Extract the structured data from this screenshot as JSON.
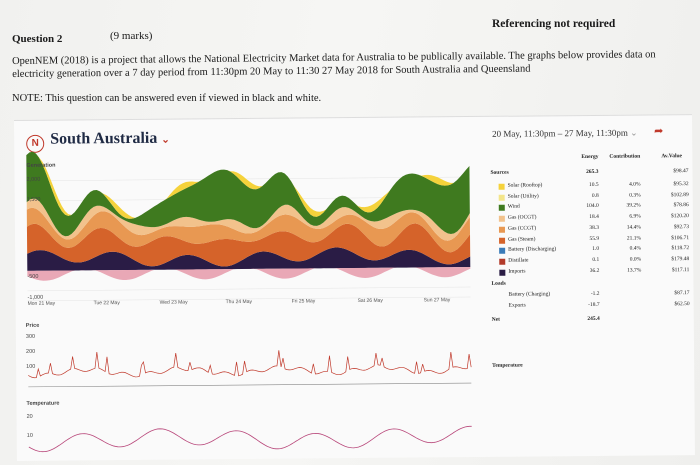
{
  "header": {
    "question": "Question 2",
    "marks": "(9 marks)",
    "reference_note": "Referencing not required"
  },
  "body": {
    "paragraph": "OpenNEM (2018) is a project that allows the National Electricity Market data for Australia to be publically available.  The graphs below provides data on electricity generation over a 7 day period from 11:30pm 20 May to 11:30 27 May 2018 for South Australia and Queensland",
    "note": "NOTE: This question can be answered even if viewed in black and white."
  },
  "panel": {
    "region": "South Australia",
    "range": "20 May, 11:30pm – 27 May, 11:30pm",
    "generation_label": "Generation",
    "price_label": "Price",
    "temperature_label": "Temperature",
    "days": [
      "Mon 21 May",
      "Tue 22 May",
      "Wed 23 May",
      "Thu 24 May",
      "Fri 25 May",
      "Sat 26 May",
      "Sun 27 May"
    ],
    "gen_ticks": [
      "2,000",
      "1,500",
      "-500",
      "-1,000"
    ],
    "price_ticks": [
      "300",
      "200",
      "100"
    ],
    "temp_ticks": [
      "20",
      "10"
    ]
  },
  "table": {
    "headers": {
      "energy": "Energy",
      "contribution": "Contribution",
      "value": "Av.Value"
    },
    "sources_label": "Sources",
    "sources_total": "265.3",
    "sources_value": "$98.47",
    "rows": [
      {
        "label": "Solar (Rooftop)",
        "color": "#f5d23b",
        "energy": "10.5",
        "contrib": "4.0%",
        "value": "$95.32"
      },
      {
        "label": "Solar (Utility)",
        "color": "#f3e58a",
        "energy": "0.8",
        "contrib": "0.3%",
        "value": "$102.89"
      },
      {
        "label": "Wind",
        "color": "#3f7a1f",
        "energy": "104.0",
        "contrib": "39.2%",
        "value": "$78.86"
      },
      {
        "label": "Gas (OCGT)",
        "color": "#f2c28c",
        "energy": "18.4",
        "contrib": "6.9%",
        "value": "$120.20"
      },
      {
        "label": "Gas (CCGT)",
        "color": "#e89852",
        "energy": "38.3",
        "contrib": "14.4%",
        "value": "$92.73"
      },
      {
        "label": "Gas (Steam)",
        "color": "#d5632a",
        "energy": "55.9",
        "contrib": "21.1%",
        "value": "$106.71"
      },
      {
        "label": "Battery (Discharging)",
        "color": "#3a7bb8",
        "energy": "1.0",
        "contrib": "0.4%",
        "value": "$118.72"
      },
      {
        "label": "Distillate",
        "color": "#b23a2a",
        "energy": "0.1",
        "contrib": "0.0%",
        "value": "$179.48"
      },
      {
        "label": "Imports",
        "color": "#2a1c45",
        "energy": "36.2",
        "contrib": "13.7%",
        "value": "$117.11"
      }
    ],
    "loads_label": "Loads",
    "loads": [
      {
        "label": "Battery (Charging)",
        "energy": "-1.2",
        "value": "$87.17"
      },
      {
        "label": "Exports",
        "energy": "-18.7",
        "value": "$62.50"
      }
    ],
    "net_label": "Net",
    "net_value": "245.4",
    "temp_section": "Temperature"
  }
}
